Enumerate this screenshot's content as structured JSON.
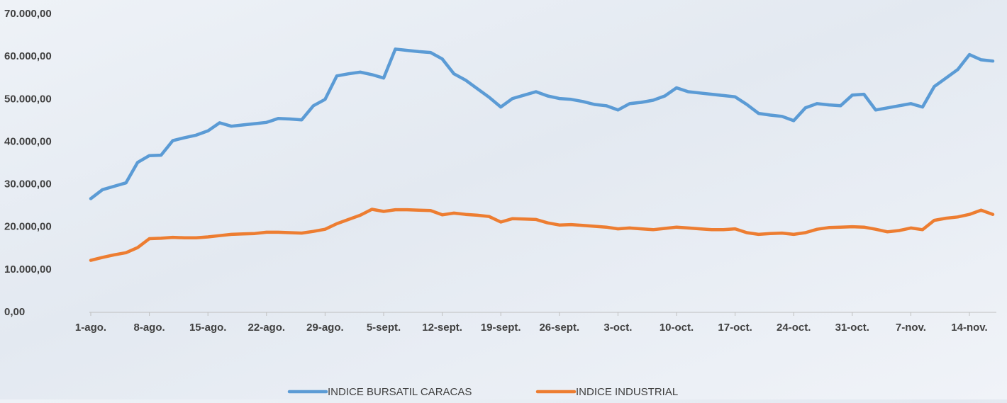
{
  "chart_data": {
    "type": "line",
    "categories": [
      "1-ago.",
      null,
      null,
      null,
      null,
      "8-ago.",
      null,
      null,
      null,
      null,
      "15-ago.",
      null,
      null,
      null,
      null,
      "22-ago.",
      null,
      null,
      null,
      null,
      "29-ago.",
      null,
      null,
      null,
      null,
      "5-sept.",
      null,
      null,
      null,
      null,
      "12-sept.",
      null,
      null,
      null,
      null,
      "19-sept.",
      null,
      null,
      null,
      null,
      "26-sept.",
      null,
      null,
      null,
      null,
      "3-oct.",
      null,
      null,
      null,
      null,
      "10-oct.",
      null,
      null,
      null,
      null,
      "17-oct.",
      null,
      null,
      null,
      null,
      "24-oct.",
      null,
      null,
      null,
      null,
      "31-oct.",
      null,
      null,
      null,
      null,
      "7-nov.",
      null,
      null,
      null,
      null,
      "14-nov.",
      null,
      null
    ],
    "series": [
      {
        "name": "INDICE BURSATIL CARACAS",
        "color": "#5b9bd5",
        "values": [
          26700,
          28800,
          29600,
          30400,
          35200,
          36800,
          36900,
          40300,
          41000,
          41600,
          42600,
          44500,
          43700,
          44000,
          44300,
          44600,
          45500,
          45400,
          45200,
          48500,
          50000,
          55500,
          56000,
          56400,
          55800,
          55000,
          61800,
          61500,
          61200,
          61000,
          59500,
          56000,
          54500,
          52500,
          50500,
          48200,
          50200,
          51000,
          51800,
          50800,
          50200,
          50000,
          49500,
          48800,
          48500,
          47500,
          49000,
          49300,
          49800,
          50800,
          52700,
          51800,
          51500,
          51200,
          50900,
          50600,
          48800,
          46700,
          46300,
          46000,
          45000,
          48000,
          49000,
          48700,
          48500,
          51000,
          51200,
          47500,
          48000,
          48500,
          49000,
          48200,
          53000,
          55000,
          57000,
          60500,
          59300,
          59000
        ]
      },
      {
        "name": "INDICE INDUSTRIAL",
        "color": "#ed7d31",
        "values": [
          12200,
          12900,
          13500,
          14000,
          15200,
          17300,
          17400,
          17600,
          17500,
          17500,
          17700,
          18000,
          18300,
          18400,
          18500,
          18800,
          18800,
          18700,
          18600,
          19000,
          19500,
          20800,
          21800,
          22800,
          24200,
          23700,
          24100,
          24100,
          24000,
          23900,
          22900,
          23300,
          23000,
          22800,
          22500,
          21200,
          22000,
          21900,
          21800,
          21000,
          20500,
          20600,
          20400,
          20200,
          20000,
          19600,
          19800,
          19600,
          19400,
          19700,
          20000,
          19800,
          19600,
          19400,
          19400,
          19600,
          18700,
          18300,
          18500,
          18600,
          18300,
          18700,
          19500,
          19900,
          20000,
          20100,
          20000,
          19500,
          18900,
          19200,
          19800,
          19400,
          21600,
          22100,
          22400,
          23000,
          24000,
          23000
        ]
      }
    ],
    "ylim": [
      0,
      70000
    ],
    "yticks": [
      {
        "value": 0,
        "label": "0,00"
      },
      {
        "value": 10000,
        "label": "10.000,00"
      },
      {
        "value": 20000,
        "label": "20.000,00"
      },
      {
        "value": 30000,
        "label": "30.000,00"
      },
      {
        "value": 40000,
        "label": "40.000,00"
      },
      {
        "value": 50000,
        "label": "50.000,00"
      },
      {
        "value": 60000,
        "label": "60.000,00"
      },
      {
        "value": 70000,
        "label": "70.000,00"
      }
    ],
    "legend": "bottom"
  }
}
